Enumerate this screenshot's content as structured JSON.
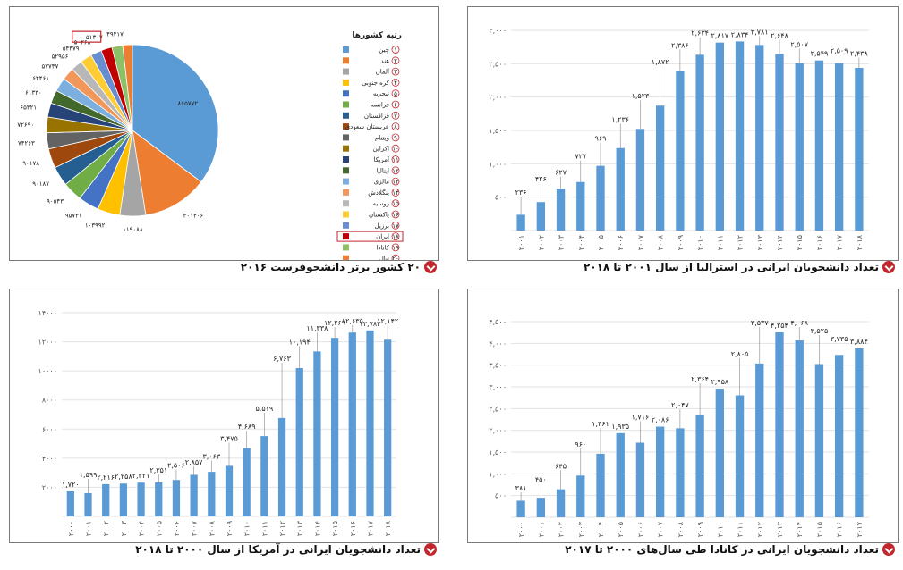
{
  "colors": {
    "bar": "#5b9bd5",
    "accent": "#c1272d",
    "pie": [
      "#5b9bd5",
      "#ed7d31",
      "#a5a5a5",
      "#ffc000",
      "#4472c4",
      "#70ad47",
      "#255e91",
      "#9e480e",
      "#636363",
      "#997300",
      "#264478",
      "#43682b",
      "#7cafdd",
      "#f1975a",
      "#b7b7b7",
      "#ffcd33",
      "#698ed0",
      "#c00000",
      "#8cc168",
      "#ed7d31"
    ]
  },
  "captions": {
    "australia": "تعداد دانشجویان ایرانی در استرالیا از سال ۲۰۰۱ تا ۲۰۱۸",
    "pie": "۲۰ کشور برتر دانشجوفرست ۲۰۱۶",
    "canada": "تعداد دانشجویان ایرانی در کانادا طی سال‌های ۲۰۰۰ تا ۲۰۱۷",
    "usa": "تعداد دانشجویان ایرانی در آمریکا از سال ۲۰۰۰ تا ۲۰۱۸"
  },
  "legend": {
    "title": "رتبه کشورها",
    "items": [
      "چین",
      "هند",
      "آلمان",
      "کره جنوبی",
      "نیجریه",
      "فرانسه",
      "قزاقستان",
      "عربستان سعودی",
      "ویتنام",
      "اکراین",
      "آمریکا",
      "ایتالیا",
      "مالزی",
      "بنگلادش",
      "روسیه",
      "پاکستان",
      "برزیل",
      "ایران",
      "کانادا",
      "نپال"
    ],
    "numbers": [
      "۱",
      "۲",
      "۳",
      "۴",
      "۵",
      "۶",
      "۷",
      "۸",
      "۹",
      "۱۰",
      "۱۱",
      "۱۲",
      "۱۳",
      "۱۴",
      "۱۵",
      "۱۶",
      "۱۷",
      "۱۸",
      "۱۹",
      "۲۰"
    ]
  },
  "chart_data": [
    {
      "type": "bar",
      "title": "تعداد دانشجویان ایرانی در استرالیا از سال ۲۰۰۱ تا ۲۰۱۸",
      "categories": [
        "۲۰۰۱",
        "۲۰۰۲",
        "۲۰۰۳",
        "۲۰۰۴",
        "۲۰۰۵",
        "۲۰۰۶",
        "۲۰۰۷",
        "۲۰۰۸",
        "۲۰۰۹",
        "۲۰۱۰",
        "۲۰۱۱",
        "۲۰۱۲",
        "۲۰۱۳",
        "۲۰۱۴",
        "۲۰۱۵",
        "۲۰۱۶",
        "۲۰۱۷",
        "۲۰۱۸"
      ],
      "values": [
        236,
        426,
        627,
        727,
        969,
        1236,
        1523,
        1872,
        2386,
        2634,
        2817,
        2834,
        2781,
        2648,
        2507,
        2549,
        2509,
        2438
      ],
      "labels": [
        "۲۳۶",
        "۴۲۶",
        "۶۲۷",
        "۷۲۷",
        "۹۶۹",
        "۱,۲۳۶",
        "۱,۵۲۳",
        "۱,۸۷۲",
        "۲,۳۸۶",
        "۲,۶۳۴",
        "۲,۸۱۷",
        "۲,۸۳۴",
        "۲,۷۸۱",
        "۲,۶۴۸",
        "۲,۵۰۷",
        "۲,۵۴۹",
        "۲,۵۰۹",
        "۲,۴۳۸"
      ],
      "ylim": [
        0,
        3000
      ],
      "yticks": [
        0,
        500,
        1000,
        1500,
        2000,
        2500,
        3000
      ],
      "ytick_labels": [
        "",
        "۵۰۰",
        "۱,۰۰۰",
        "۱,۵۰۰",
        "۲,۰۰۰",
        "۲,۵۰۰",
        "۳,۰۰۰"
      ],
      "grid": true
    },
    {
      "type": "pie",
      "title": "۲۰ کشور برتر دانشجوفرست ۲۰۱۶",
      "categories": [
        "چین",
        "هند",
        "آلمان",
        "کره جنوبی",
        "نیجریه",
        "فرانسه",
        "قزاقستان",
        "عربستان سعودی",
        "ویتنام",
        "اکراین",
        "آمریکا",
        "ایتالیا",
        "مالزی",
        "بنگلادش",
        "روسیه",
        "پاکستان",
        "برزیل",
        "ایران",
        "کانادا",
        "نپال"
      ],
      "values": [
        865772,
        301406,
        119088,
        103992,
        95731,
        90543,
        90187,
        90178,
        74263,
        72690,
        65321,
        61330,
        64461,
        57747,
        52956,
        54479,
        50268,
        51307,
        49417,
        45000
      ],
      "labels": [
        "۸۶۵۷۷۲",
        "۳۰۱۴۰۶",
        "۱۱۹۰۸۸",
        "۱۰۳۹۹۲",
        "۹۵۷۳۱",
        "۹۰۵۴۳",
        "۹۰۱۸۷",
        "۹۰۱۷۸",
        "۷۴۲۶۳",
        "۷۲۶۹۰",
        "۶۵۳۲۱",
        "۶۱۳۳۰",
        "۶۴۴۶۱",
        "۵۷۷۴۷",
        "۵۲۹۵۶",
        "۵۴۴۷۹",
        "۵۰۲۶۸",
        "۵۱۳۰۷",
        "۴۹۴۱۷",
        ""
      ],
      "legend_placement": "right"
    },
    {
      "type": "bar",
      "title": "تعداد دانشجویان ایرانی در کانادا طی سال‌های ۲۰۰۰ تا ۲۰۱۷",
      "categories": [
        "۲۰۰۰",
        "۲۰۰۱",
        "۲۰۰۲",
        "۲۰۰۳",
        "۲۰۰۴",
        "۲۰۰۵",
        "۲۰۰۶",
        "۲۰۰۷",
        "۲۰۰۸",
        "۲۰۰۹",
        "۲۰۱۰",
        "۲۰۱۱",
        "۲۰۱۲",
        "۲۰۱۳",
        "۲۰۱۴",
        "۲۰۱۵",
        "۲۰۱۶",
        "۲۰۱۷"
      ],
      "values": [
        381,
        450,
        645,
        960,
        1461,
        1935,
        1716,
        2086,
        2047,
        2364,
        2958,
        2805,
        3537,
        4254,
        4068,
        3525,
        3735,
        3884
      ],
      "labels": [
        "۳۸۱",
        "۴۵۰",
        "۶۴۵",
        "۹۶۰",
        "۱,۴۶۱",
        "۱,۹۳۵",
        "۱,۷۱۶",
        "۲,۰۸۶",
        "۲,۰۴۷",
        "۲,۳۶۴",
        "۲,۹۵۸",
        "۲,۸۰۵",
        "۳,۵۳۷",
        "۴,۲۵۴",
        "۴,۰۶۸",
        "۳,۵۲۵",
        "۳,۷۳۵",
        "۳,۸۸۴"
      ],
      "ylim": [
        0,
        4500
      ],
      "yticks": [
        0,
        500,
        1000,
        1500,
        2000,
        2500,
        3000,
        3500,
        4000,
        4500
      ],
      "ytick_labels": [
        "",
        "۵۰۰",
        "۱,۰۰۰",
        "۱,۵۰۰",
        "۲,۰۰۰",
        "۲,۵۰۰",
        "۳,۰۰۰",
        "۳,۵۰۰",
        "۴,۰۰۰",
        "۴,۵۰۰"
      ],
      "grid": true
    },
    {
      "type": "bar",
      "title": "تعداد دانشجویان ایرانی در آمریکا از سال ۲۰۰۰ تا ۲۰۱۸",
      "categories": [
        "۲۰۰۰",
        "۲۰۰۱",
        "۲۰۰۲",
        "۲۰۰۳",
        "۲۰۰۴",
        "۲۰۰۵",
        "۲۰۰۶",
        "۲۰۰۷",
        "۲۰۰۸",
        "۲۰۰۹",
        "۲۰۱۰",
        "۲۰۱۱",
        "۲۰۱۲",
        "۲۰۱۳",
        "۲۰۱۴",
        "۲۰۱۵",
        "۲۰۱۶",
        "۲۰۱۷",
        "۲۰۱۸"
      ],
      "values": [
        1720,
        1599,
        2216,
        2258,
        2321,
        2351,
        2506,
        2857,
        3063,
        3475,
        4689,
        5519,
        6763,
        10194,
        11338,
        12269,
        12635,
        12783,
        12142
      ],
      "labels": [
        "۱,۷۲۰",
        "۱,۵۹۹",
        "۲,۲۱۶",
        "۲,۲۵۸",
        "۲,۳۲۱",
        "۲,۳۵۱",
        "۲,۵۰۶",
        "۲,۸۵۷",
        "۳,۰۶۳",
        "۳,۴۷۵",
        "۴,۶۸۹",
        "۵,۵۱۹",
        "۶,۷۶۳",
        "۱۰,۱۹۴",
        "۱۱,۳۳۸",
        "۱۲,۲۶۹",
        "۱۲,۶۳۵",
        "۱۲,۷۸۳",
        "۱۲,۱۴۲"
      ],
      "ylim": [
        0,
        14000
      ],
      "yticks": [
        0,
        2000,
        4000,
        6000,
        8000,
        10000,
        12000,
        14000
      ],
      "ytick_labels": [
        "",
        "۲۰۰۰",
        "۴۰۰۰",
        "۶۰۰۰",
        "۸۰۰۰",
        "۱۰۰۰۰",
        "۱۲۰۰۰",
        "۱۴۰۰۰"
      ],
      "grid": true
    }
  ]
}
